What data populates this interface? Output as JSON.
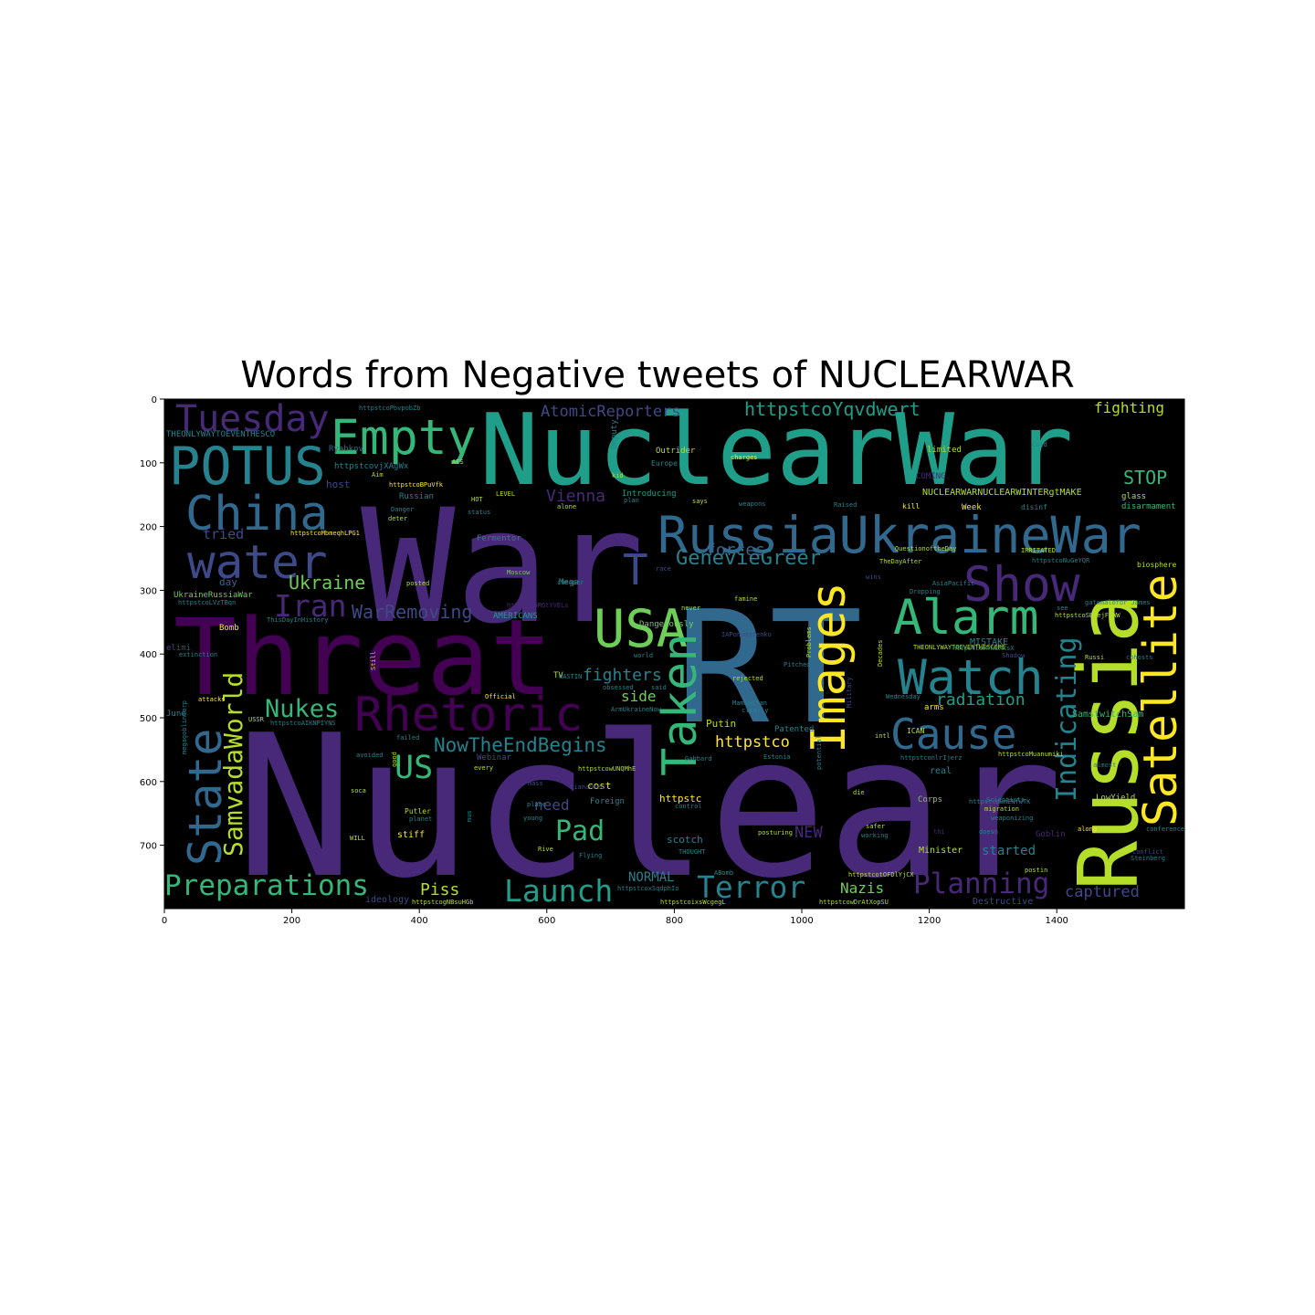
{
  "figure": {
    "title": "Words from Negative tweets of NUCLEARWAR",
    "background_color": "#000000",
    "x_ticks": [
      "0",
      "200",
      "400",
      "600",
      "800",
      "1000",
      "1200",
      "1400"
    ],
    "y_ticks": [
      "0",
      "100",
      "200",
      "300",
      "400",
      "500",
      "600",
      "700"
    ]
  },
  "palette": {
    "dark_purple": "#440154",
    "purple": "#482878",
    "indigo": "#3e4989",
    "blue": "#31688e",
    "teal_blue": "#26828e",
    "teal": "#1f9e89",
    "green": "#35b779",
    "light_green": "#6ece58",
    "yellow_green": "#b5de2b",
    "yellow": "#fde725"
  },
  "words": [
    {
      "text": "Nuclear",
      "color": "#482878"
    },
    {
      "text": "NuclearWar",
      "color": "#1f9e89"
    },
    {
      "text": "War",
      "color": "#482878"
    },
    {
      "text": "RT",
      "color": "#31688e"
    },
    {
      "text": "Threat",
      "color": "#440154"
    },
    {
      "text": "Russia",
      "color": "#b5de2b"
    },
    {
      "text": "RussiaUkraineWar",
      "color": "#31688e"
    },
    {
      "text": "Empty",
      "color": "#35b779"
    },
    {
      "text": "POTUS",
      "color": "#26828e"
    },
    {
      "text": "China",
      "color": "#31688e"
    },
    {
      "text": "Tuesday",
      "color": "#482878"
    },
    {
      "text": "water",
      "color": "#3e4989"
    },
    {
      "text": "Show",
      "color": "#482878"
    },
    {
      "text": "Satellite",
      "color": "#fde725"
    },
    {
      "text": "Alarm",
      "color": "#35b779"
    },
    {
      "text": "USA",
      "color": "#6ece58"
    },
    {
      "text": "Watch",
      "color": "#26828e"
    },
    {
      "text": "Rhetoric",
      "color": "#440154"
    },
    {
      "text": "Images",
      "color": "#fde725"
    },
    {
      "text": "Taken",
      "color": "#35b779"
    },
    {
      "text": "State",
      "color": "#31688e"
    },
    {
      "text": "Cause",
      "color": "#31688e"
    },
    {
      "text": "Iran",
      "color": "#482878"
    },
    {
      "text": "Preparations",
      "color": "#35b779"
    },
    {
      "text": "Terror",
      "color": "#26828e"
    },
    {
      "text": "Launch",
      "color": "#1f9e89"
    },
    {
      "text": "Planning",
      "color": "#482878"
    },
    {
      "text": "SamvadaWorld",
      "color": "#b5de2b"
    },
    {
      "text": "Indicating",
      "color": "#26828e"
    },
    {
      "text": "Nukes",
      "color": "#35b779"
    },
    {
      "text": "US",
      "color": "#35b779"
    },
    {
      "text": "Pad",
      "color": "#35b779"
    },
    {
      "text": "T",
      "color": "#3e4989"
    },
    {
      "text": "GenevieGreer",
      "color": "#26828e"
    },
    {
      "text": "AtomicReporters",
      "color": "#3e4989"
    },
    {
      "text": "httpstcoYqvdwert",
      "color": "#1f9e89"
    },
    {
      "text": "NowTheEndBegins",
      "color": "#26828e"
    },
    {
      "text": "WarRemoving",
      "color": "#3e4989"
    },
    {
      "text": "Ukraine",
      "color": "#6ece58"
    },
    {
      "text": "forces",
      "color": "#31688e"
    },
    {
      "text": "Vienna",
      "color": "#482878"
    },
    {
      "text": "fighters",
      "color": "#26828e"
    },
    {
      "text": "radiation",
      "color": "#1f9e89"
    },
    {
      "text": "fighting",
      "color": "#b5de2b"
    },
    {
      "text": "STOP",
      "color": "#35b779"
    },
    {
      "text": "captured",
      "color": "#3e4989"
    },
    {
      "text": "Piss",
      "color": "#b5de2b"
    },
    {
      "text": "Nazis",
      "color": "#6ece58"
    },
    {
      "text": "httpstco",
      "color": "#fde725"
    },
    {
      "text": "side",
      "color": "#6ece58"
    },
    {
      "text": "need",
      "color": "#3e4989"
    },
    {
      "text": "NEW",
      "color": "#482878"
    },
    {
      "text": "started",
      "color": "#26828e"
    },
    {
      "text": "NORMAL",
      "color": "#26828e"
    },
    {
      "text": "tried",
      "color": "#3e4989"
    },
    {
      "text": "day",
      "color": "#31688e"
    },
    {
      "text": "UkraineRussiaWar",
      "color": "#6ece58"
    },
    {
      "text": "httpstcovjXAgWx",
      "color": "#26828e"
    },
    {
      "text": "Ryabkov",
      "color": "#31688e"
    },
    {
      "text": "host",
      "color": "#3e4989"
    },
    {
      "text": "Russian",
      "color": "#26828e"
    },
    {
      "text": "Outrider",
      "color": "#b5de2b"
    },
    {
      "text": "Deputy",
      "color": "#26828e"
    },
    {
      "text": "limited",
      "color": "#b5de2b"
    },
    {
      "text": "NUCLEARWARNUCLEARWINTERgtMAKE",
      "color": "#b5de2b"
    },
    {
      "text": "disarmament",
      "color": "#35b779"
    },
    {
      "text": "glass",
      "color": "#b5de2b"
    },
    {
      "text": "Week",
      "color": "#fde725"
    },
    {
      "text": "kill",
      "color": "#fde725"
    },
    {
      "text": "disinf",
      "color": "#26828e"
    },
    {
      "text": "Dangerously",
      "color": "#6ece58"
    },
    {
      "text": "AMERICANS",
      "color": "#1f9e89"
    },
    {
      "text": "Mega",
      "color": "#26828e"
    },
    {
      "text": "Fermentor",
      "color": "#26828e"
    },
    {
      "text": "Moscow",
      "color": "#6ece58"
    },
    {
      "text": "Bomb",
      "color": "#fde725"
    },
    {
      "text": "ThisDayInHistory",
      "color": "#26828e"
    },
    {
      "text": "Putin",
      "color": "#b5de2b"
    },
    {
      "text": "Patented",
      "color": "#26828e"
    },
    {
      "text": "LowYield",
      "color": "#b5de2b"
    },
    {
      "text": "Corps",
      "color": "#6ece58"
    },
    {
      "text": "Minister",
      "color": "#b5de2b"
    },
    {
      "text": "real",
      "color": "#26828e"
    },
    {
      "text": "cost",
      "color": "#fde725"
    },
    {
      "text": "Foreign",
      "color": "#26828e"
    },
    {
      "text": "httpstc",
      "color": "#fde725"
    },
    {
      "text": "scotch",
      "color": "#26828e"
    },
    {
      "text": "stiff",
      "color": "#fde725"
    },
    {
      "text": "ideology",
      "color": "#3e4989"
    },
    {
      "text": "Destructive",
      "color": "#3e4989"
    },
    {
      "text": "Goblin",
      "color": "#482878"
    },
    {
      "text": "MISTAKE",
      "color": "#26828e"
    },
    {
      "text": "TV",
      "color": "#b5de2b"
    },
    {
      "text": "June",
      "color": "#26828e"
    },
    {
      "text": "elimi",
      "color": "#3e4989"
    },
    {
      "text": "SamstwitchSam",
      "color": "#35b779"
    },
    {
      "text": "ICAN",
      "color": "#b5de2b"
    },
    {
      "text": "Webinar",
      "color": "#3e4989"
    },
    {
      "text": "httpstcoMbmeqhLPG1",
      "color": "#fde725"
    },
    {
      "text": "THEONLYWAYTOEVENTHESCO",
      "color": "#26828e"
    },
    {
      "text": "httpstcoPbvpobZb",
      "color": "#26828e"
    },
    {
      "text": "httpstcoBPuVfk",
      "color": "#fde725"
    },
    {
      "text": "Introducing",
      "color": "#1f9e89"
    },
    {
      "text": "Europe",
      "color": "#26828e"
    },
    {
      "text": "charges",
      "color": "#fde725"
    },
    {
      "text": "Cold",
      "color": "#26828e"
    },
    {
      "text": "COMING",
      "color": "#482878"
    },
    {
      "text": "QuestionoftheDay",
      "color": "#b5de2b"
    },
    {
      "text": "TheDayAfter",
      "color": "#b5de2b"
    },
    {
      "text": "IRRITATED",
      "color": "#b5de2b"
    },
    {
      "text": "biosphere",
      "color": "#b5de2b"
    },
    {
      "text": "Wednesday",
      "color": "#26828e"
    },
    {
      "text": "httpstcoSBOejFtWW",
      "color": "#b5de2b"
    },
    {
      "text": "gatomalofor James",
      "color": "#26828e"
    },
    {
      "text": "arms",
      "color": "#fde725"
    },
    {
      "text": "Putler",
      "color": "#b5de2b"
    },
    {
      "text": "planet",
      "color": "#26828e"
    },
    {
      "text": "Official",
      "color": "#fde725"
    },
    {
      "text": "attacks",
      "color": "#fde725"
    },
    {
      "text": "USSR",
      "color": "#b5de2b"
    },
    {
      "text": "httpstcoAIKNPIYNS",
      "color": "#26828e"
    },
    {
      "text": "Scientists",
      "color": "#26828e"
    },
    {
      "text": "migration",
      "color": "#b5de2b"
    },
    {
      "text": "weaponizing",
      "color": "#26828e"
    },
    {
      "text": "postin",
      "color": "#b5de2b"
    },
    {
      "text": "conflict",
      "color": "#3e4989"
    },
    {
      "text": "working",
      "color": "#26828e"
    },
    {
      "text": "safer",
      "color": "#b5de2b"
    },
    {
      "text": "posturing",
      "color": "#b5de2b"
    },
    {
      "text": "Flying",
      "color": "#26828e"
    },
    {
      "text": "Rive",
      "color": "#b5de2b"
    },
    {
      "text": "THOUGHT",
      "color": "#26828e"
    },
    {
      "text": "ABomb",
      "color": "#26828e"
    },
    {
      "text": "httpstcogNBsuHGb",
      "color": "#b5de2b"
    },
    {
      "text": "httpstcowDrAtXopSU",
      "color": "#b5de2b"
    },
    {
      "text": "httpstcoxSqdphIo",
      "color": "#26828e"
    },
    {
      "text": "httpstcoixsWcgegL",
      "color": "#b5de2b"
    },
    {
      "text": "httpstcotOFDlYjCX",
      "color": "#b5de2b"
    },
    {
      "text": "httpstcowUNQMhE",
      "color": "#b5de2b"
    },
    {
      "text": "httpstcoMuanumiki",
      "color": "#b5de2b"
    },
    {
      "text": "httpstcoLVzTBqn",
      "color": "#26828e"
    },
    {
      "text": "httpstconlrIjerz",
      "color": "#26828e"
    },
    {
      "text": "httpstcoRQtYVELs",
      "color": "#482878"
    },
    {
      "text": "httpstcowmENfwTK",
      "color": "#26828e"
    },
    {
      "text": "httpstcoNuGeYQR",
      "color": "#26828e"
    },
    {
      "text": "THEONLYWAYTOEVENTHESCORE",
      "color": "#b5de2b"
    },
    {
      "text": "httpstcoHTmLXXsX",
      "color": "#26828e"
    },
    {
      "text": "AsiaPacific",
      "color": "#26828e"
    },
    {
      "text": "Dropping",
      "color": "#26828e"
    },
    {
      "text": "posted",
      "color": "#b5de2b"
    },
    {
      "text": "cheaper",
      "color": "#26828e"
    },
    {
      "text": "plan",
      "color": "#26828e"
    },
    {
      "text": "alone",
      "color": "#b5de2b"
    },
    {
      "text": "says",
      "color": "#b5de2b"
    },
    {
      "text": "weapons",
      "color": "#26828e"
    },
    {
      "text": "Raised",
      "color": "#26828e"
    },
    {
      "text": "kid",
      "color": "#b5de2b"
    },
    {
      "text": "Aim",
      "color": "#b5de2b"
    },
    {
      "text": "Danger",
      "color": "#26828e"
    },
    {
      "text": "deter",
      "color": "#b5de2b"
    },
    {
      "text": "HOT",
      "color": "#b5de2b"
    },
    {
      "text": "LEVEL",
      "color": "#b5de2b"
    },
    {
      "text": "status",
      "color": "#26828e"
    },
    {
      "text": "AES",
      "color": "#b5de2b"
    },
    {
      "text": "ArmUkraineNow",
      "color": "#26828e"
    },
    {
      "text": "obsessed",
      "color": "#26828e"
    },
    {
      "text": "said",
      "color": "#26828e"
    },
    {
      "text": "world",
      "color": "#26828e"
    },
    {
      "text": "Manhattan",
      "color": "#26828e"
    },
    {
      "text": "clearly",
      "color": "#26828e"
    },
    {
      "text": "famine",
      "color": "#b5de2b"
    },
    {
      "text": "Problems",
      "color": "#b5de2b"
    },
    {
      "text": "Pitched",
      "color": "#26828e"
    },
    {
      "text": "rejected",
      "color": "#b5de2b"
    },
    {
      "text": "Decades",
      "color": "#b5de2b"
    },
    {
      "text": "Military",
      "color": "#3e4989"
    },
    {
      "text": "intl",
      "color": "#b5de2b"
    },
    {
      "text": "Gabbard",
      "color": "#26828e"
    },
    {
      "text": "Estonia",
      "color": "#26828e"
    },
    {
      "text": "potential",
      "color": "#26828e"
    },
    {
      "text": "die",
      "color": "#b5de2b"
    },
    {
      "text": "control",
      "color": "#26828e"
    },
    {
      "text": "tiananmed",
      "color": "#3e4989"
    },
    {
      "text": "mass",
      "color": "#3e4989"
    },
    {
      "text": "plane",
      "color": "#26828e"
    },
    {
      "text": "young",
      "color": "#26828e"
    },
    {
      "text": "WILL",
      "color": "#b5de2b"
    },
    {
      "text": "soca",
      "color": "#b5de2b"
    },
    {
      "text": "every",
      "color": "#b5de2b"
    },
    {
      "text": "failed",
      "color": "#26828e"
    },
    {
      "text": "good",
      "color": "#b5de2b"
    },
    {
      "text": "mus",
      "color": "#26828e"
    },
    {
      "text": "avoided",
      "color": "#26828e"
    },
    {
      "text": "extinction",
      "color": "#26828e"
    },
    {
      "text": "Still",
      "color": "#b5de2b"
    },
    {
      "text": "megagoblincorp",
      "color": "#26828e"
    },
    {
      "text": "thi",
      "color": "#482878"
    },
    {
      "text": "doesn",
      "color": "#26828e"
    },
    {
      "text": "conferences",
      "color": "#26828e"
    },
    {
      "text": "Steinberg",
      "color": "#26828e"
    },
    {
      "text": "along",
      "color": "#fde725"
    },
    {
      "text": "see",
      "color": "#26828e"
    },
    {
      "text": "Russi",
      "color": "#b5de2b"
    },
    {
      "text": "cohosts",
      "color": "#26828e"
    },
    {
      "text": "Shadow",
      "color": "#3e4989"
    },
    {
      "text": "almost",
      "color": "#26828e"
    },
    {
      "text": "race",
      "color": "#3e4989"
    },
    {
      "text": "never",
      "color": "#b5de2b"
    },
    {
      "text": "wins",
      "color": "#3e4989"
    },
    {
      "text": "IAPonomarenko",
      "color": "#3e4989"
    },
    {
      "text": "WASTIN",
      "color": "#26828e"
    },
    {
      "text": "sho",
      "color": "#b5de2b"
    },
    {
      "text": "Movie",
      "color": "#26828e"
    },
    {
      "text": "Twitt",
      "color": "#3e4989"
    },
    {
      "text": "TV",
      "color": "#b5de2b"
    }
  ]
}
